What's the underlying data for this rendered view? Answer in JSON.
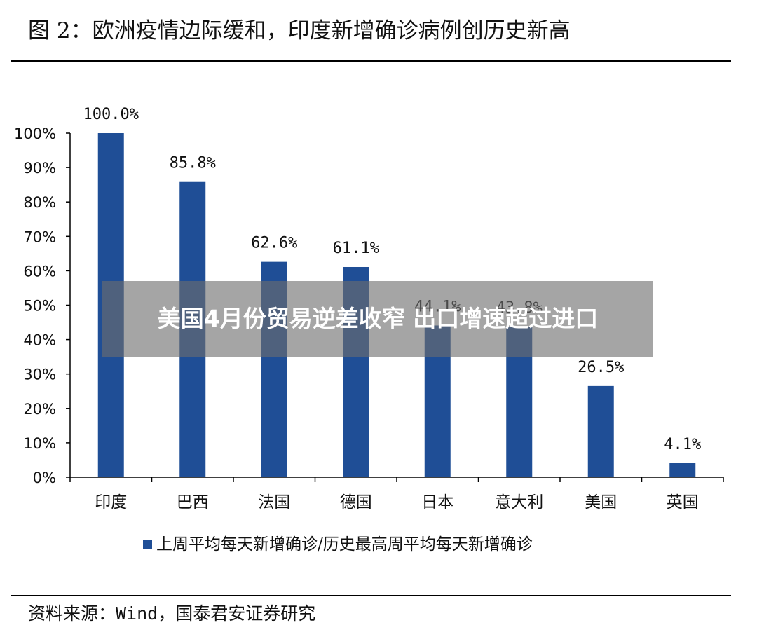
{
  "figure_title": "图 2：欧洲疫情边际缓和，印度新增确诊病例创历史新高",
  "source_note": "资料来源：Wind，国泰君安证券研究",
  "overlay_caption": "美国4月份贸易逆差收窄 出口增速超过进口",
  "colors": {
    "bar": "#1f4e96",
    "axis": "#000000"
  },
  "chart_data": {
    "type": "bar",
    "title": "",
    "xlabel": "",
    "ylabel": "",
    "categories": [
      "印度",
      "巴西",
      "法国",
      "德国",
      "日本",
      "意大利",
      "美国",
      "英国"
    ],
    "series": [
      {
        "name": "上周平均每天新增确诊/历史最高周平均每天新增确诊",
        "values": [
          100.0,
          85.8,
          62.6,
          61.1,
          44.1,
          43.8,
          26.5,
          4.1
        ]
      }
    ],
    "data_labels": [
      "100.0%",
      "85.8%",
      "62.6%",
      "61.1%",
      "44.1%",
      "43.8%",
      "26.5%",
      "4.1%"
    ],
    "ylim": [
      0,
      100
    ],
    "yticks": [
      0,
      10,
      20,
      30,
      40,
      50,
      60,
      70,
      80,
      90,
      100
    ],
    "ytick_labels": [
      "0%",
      "10%",
      "20%",
      "30%",
      "40%",
      "50%",
      "60%",
      "70%",
      "80%",
      "90%",
      "100%"
    ],
    "grid": false,
    "legend_position": "bottom"
  }
}
